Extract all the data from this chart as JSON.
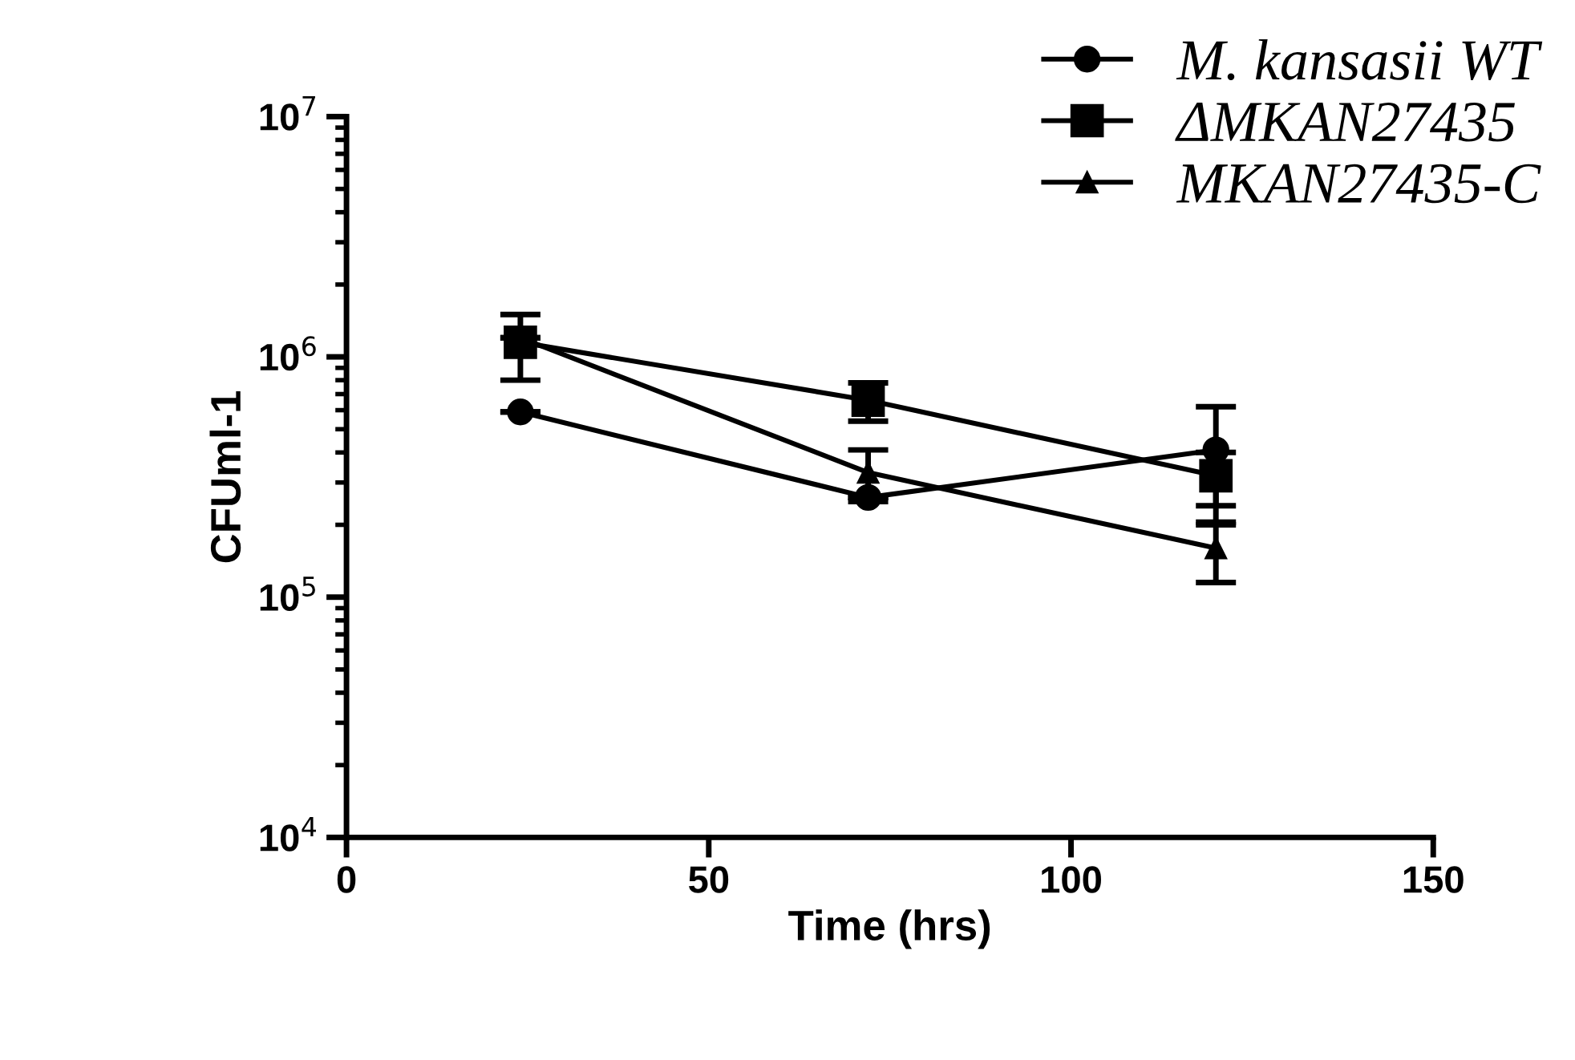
{
  "chart_data": {
    "type": "line",
    "xlabel": "Time (hrs)",
    "ylabel": "CFUml-1",
    "log": "y",
    "xlim": [
      0,
      150
    ],
    "xticks": [
      0,
      50,
      100,
      150
    ],
    "ylim": [
      10000,
      10000000
    ],
    "yticks": [
      {
        "value": 10000,
        "label": "10$^{4}$"
      },
      {
        "value": 100000,
        "label": "10$^{5}$"
      },
      {
        "value": 1000000,
        "label": "10$^{6}$"
      },
      {
        "value": 10000000,
        "label": "10$^{7}$"
      }
    ],
    "x": [
      24,
      72,
      120
    ],
    "grid": false,
    "legend": "top right",
    "line_style": "solid",
    "series": [
      {
        "name": "M. kansasii WT",
        "color": "#000000",
        "marker": "circle",
        "values": [
          590000,
          260000,
          410000
        ],
        "errors": [
          null,
          null,
          210000
        ]
      },
      {
        "name": "ΔMKAN27435",
        "color": "#000000",
        "marker": "square",
        "values": [
          1150000,
          660000,
          320000
        ],
        "errors": [
          350000,
          120000,
          80000
        ]
      },
      {
        "name": "MKAN27435-C",
        "color": "#000000",
        "marker": "triangle",
        "values": [
          1200000,
          330000,
          160000
        ],
        "errors": [
          null,
          80000,
          45000
        ]
      }
    ]
  }
}
